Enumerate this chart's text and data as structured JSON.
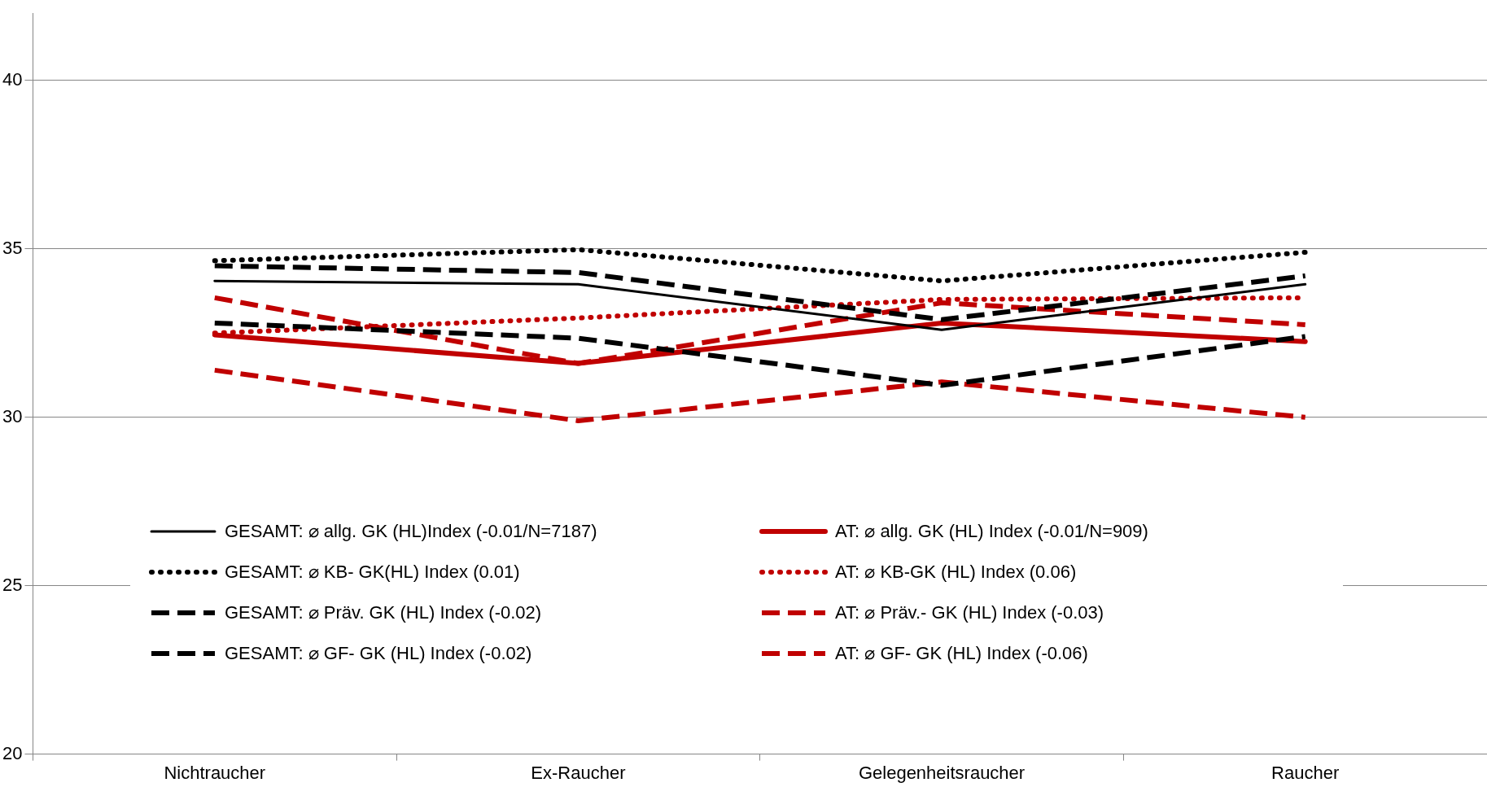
{
  "chart_data": {
    "type": "line",
    "categories": [
      "Nichtraucher",
      "Ex-Raucher",
      "Gelegenheitsraucher",
      "Raucher"
    ],
    "ylim": [
      20,
      42
    ],
    "yticks": [
      20,
      25,
      30,
      35,
      40
    ],
    "grid": "y",
    "legend": "bottom",
    "marker": "none",
    "series": [
      {
        "name": "GESAMT: ⌀ allg. GK (HL)Index (-0.01/N=7187)",
        "color": "#000000",
        "line_style": "solid",
        "values": [
          34.05,
          33.95,
          32.6,
          33.95
        ]
      },
      {
        "name": "GESAMT: ⌀ KB- GK(HL) Index (0.01)",
        "color": "#000000",
        "line_style": "dotted",
        "values": [
          34.65,
          34.98,
          34.05,
          34.9
        ]
      },
      {
        "name": "GESAMT: ⌀ Präv. GK (HL) Index (-0.02)",
        "color": "#000000",
        "line_style": "dashed",
        "values": [
          34.5,
          34.3,
          32.9,
          34.2
        ]
      },
      {
        "name": "GESAMT: ⌀ GF- GK (HL) Index (-0.02)",
        "color": "#000000",
        "line_style": "dashed",
        "values": [
          32.8,
          32.35,
          30.95,
          32.4
        ]
      },
      {
        "name": "AT: ⌀ allg. GK (HL) Index (-0.01/N=909)",
        "color": "#c00000",
        "line_style": "solid",
        "values": [
          32.45,
          31.6,
          32.8,
          32.25
        ]
      },
      {
        "name": "AT: ⌀ KB-GK (HL) Index (0.06)",
        "color": "#c00000",
        "line_style": "dotted",
        "values": [
          32.5,
          32.95,
          33.5,
          33.55
        ]
      },
      {
        "name": "AT: ⌀ Präv.- GK (HL) Index (-0.03)",
        "color": "#c00000",
        "line_style": "dashed",
        "values": [
          33.55,
          31.6,
          33.4,
          32.75
        ]
      },
      {
        "name": "AT: ⌀ GF- GK (HL) Index (-0.06)",
        "color": "#c00000",
        "line_style": "dashed",
        "values": [
          31.4,
          29.9,
          31.05,
          30.0
        ]
      }
    ]
  }
}
